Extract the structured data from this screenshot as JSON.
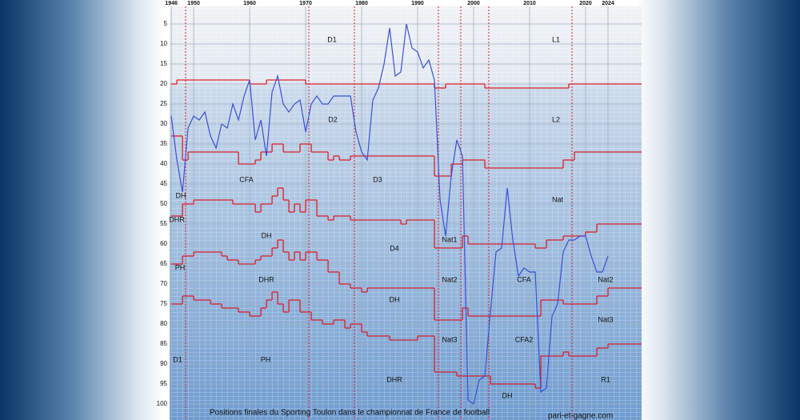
{
  "chart_data": {
    "type": "line",
    "footer": "Positions finales du Sporting Toulon dans le championnat de France de football",
    "source": "pari-et-gagne.com",
    "xlim": [
      1945.7,
      2030
    ],
    "ylim": [
      0.6,
      104
    ],
    "xticks": [
      1946,
      1950,
      1960,
      1970,
      1980,
      1990,
      2000,
      2010,
      2020,
      2024
    ],
    "yticks": [
      5,
      10,
      15,
      20,
      25,
      30,
      35,
      40,
      45,
      50,
      55,
      60,
      65,
      70,
      75,
      80,
      85,
      90,
      95,
      100
    ],
    "grid": true,
    "series": [
      {
        "color": "#3b50d6",
        "x": [
          1946,
          1947,
          1948,
          1949,
          1950,
          1951,
          1952,
          1953,
          1954,
          1955,
          1956,
          1957,
          1958,
          1959,
          1960,
          1961,
          1962,
          1963,
          1964,
          1965,
          1966,
          1967,
          1968,
          1969,
          1970,
          1971,
          1972,
          1973,
          1974,
          1975,
          1976,
          1977,
          1978,
          1979,
          1980,
          1981,
          1982,
          1983,
          1984,
          1985,
          1986,
          1987,
          1988,
          1989,
          1990,
          1991,
          1992,
          1993,
          1994,
          1995,
          1996,
          1997,
          1998,
          1999,
          2000,
          2001,
          2002,
          2003,
          2004,
          2005,
          2006,
          2007,
          2008,
          2009,
          2010,
          2011,
          2012,
          2013,
          2014,
          2015,
          2016,
          2017,
          2018,
          2019,
          2020,
          2021,
          2022,
          2023,
          2024
        ],
        "values": [
          28,
          39,
          47,
          31,
          28,
          29,
          27,
          33,
          36,
          30,
          31,
          25,
          29,
          23,
          19,
          34,
          29,
          38,
          22,
          18,
          25,
          27,
          25,
          24,
          32,
          25,
          23,
          25,
          25,
          23,
          23,
          23,
          23,
          32,
          37,
          39,
          24,
          21,
          15,
          6,
          18,
          17,
          5,
          11,
          12,
          16,
          14,
          19,
          49,
          58,
          43,
          34,
          38,
          99,
          100,
          94,
          93,
          77,
          62,
          61,
          46,
          59,
          68,
          66,
          67,
          67,
          97,
          96,
          78,
          75,
          62,
          59,
          59,
          58,
          58,
          63,
          67,
          67,
          63
        ]
      }
    ],
    "boundaries": [
      {
        "color": "#e0202a",
        "x": [
          1946,
          1947,
          1960,
          1963,
          1970,
          1993,
          1995,
          2002,
          2017
        ],
        "values": [
          20,
          19,
          20,
          19,
          20,
          21,
          20,
          21,
          20
        ]
      },
      {
        "color": "#e0202a",
        "x": [
          1946,
          1948,
          1949,
          1958,
          1961,
          1962,
          1964,
          1966,
          1969,
          1971,
          1974,
          1975,
          1976,
          1978,
          1993,
          1996,
          1998,
          2002,
          2016,
          2018
        ],
        "values": [
          33,
          39,
          37,
          40,
          39,
          37,
          35,
          37,
          35,
          37,
          39,
          38,
          39,
          38,
          43,
          40,
          39,
          41,
          39,
          37
        ]
      },
      {
        "color": "#e0202a",
        "x": [
          1946,
          1948,
          1950,
          1957,
          1961,
          1962,
          1964,
          1965,
          1966,
          1967,
          1968,
          1969,
          1970,
          1972,
          1974,
          1975,
          1978,
          1987,
          1988,
          1993,
          1998,
          1999,
          2011,
          2013,
          2016,
          2020,
          2022
        ],
        "values": [
          53,
          50,
          49,
          50,
          52,
          50,
          48,
          46,
          49,
          52,
          50,
          52,
          49,
          53,
          54,
          53,
          54,
          55,
          54,
          61,
          58,
          60,
          61,
          59,
          58,
          57,
          55
        ]
      },
      {
        "color": "#e0202a",
        "x": [
          1946,
          1948,
          1950,
          1955,
          1956,
          1958,
          1961,
          1962,
          1964,
          1965,
          1966,
          1967,
          1968,
          1969,
          1970,
          1972,
          1974,
          1976,
          1978,
          1980,
          1981,
          1993,
          1998,
          1999,
          2011,
          2012,
          2016,
          2022,
          2024
        ],
        "values": [
          65,
          63,
          62,
          63,
          64,
          65,
          64,
          63,
          61,
          59,
          62,
          64,
          62,
          64,
          62,
          64,
          67,
          70,
          71,
          72,
          71,
          79,
          76,
          78,
          78,
          74,
          75,
          73,
          71
        ]
      },
      {
        "color": "#e0202a",
        "x": [
          1946,
          1948,
          1950,
          1953,
          1955,
          1958,
          1960,
          1962,
          1963,
          1964,
          1965,
          1966,
          1967,
          1969,
          1971,
          1973,
          1975,
          1977,
          1978,
          1980,
          1981,
          1985,
          1990,
          1993,
          1997,
          1999,
          2003,
          2011,
          2012,
          2016,
          2017,
          2022,
          2024
        ],
        "values": [
          75,
          73,
          74,
          75,
          76,
          77,
          78,
          76,
          74,
          72,
          75,
          77,
          74,
          77,
          79,
          80,
          79,
          81,
          80,
          82,
          83,
          84,
          83,
          92,
          93,
          93,
          95,
          96,
          88,
          87,
          88,
          86,
          85
        ]
      }
    ],
    "labels": [
      "D1",
      "L1",
      "D2",
      "L2",
      "CFA",
      "D3",
      "Nat",
      "DH",
      "DHR",
      "DH",
      "Nat1",
      "D4",
      "PH",
      "DHR",
      "Nat2",
      "CFA",
      "Nat2",
      "DH",
      "Nat3",
      "Nat3",
      "CFA2",
      "D1",
      "PH",
      "DHR",
      "R1",
      "DH"
    ]
  }
}
